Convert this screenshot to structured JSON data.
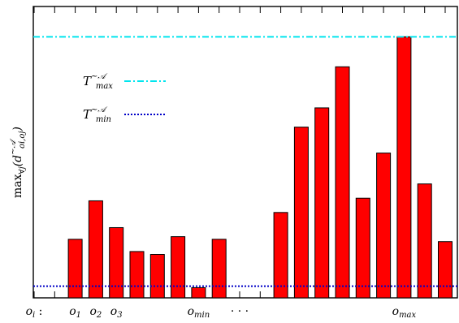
{
  "chart_data": {
    "type": "bar",
    "ylabel_main": "max",
    "ylabel_sub": "∀j",
    "ylabel_arg_base": "(d",
    "ylabel_arg_sup": "~𝒜",
    "ylabel_arg_sub": "oi,oj",
    "ylabel_arg_close": ")",
    "ylim": [
      0,
      100
    ],
    "num_slots": 21,
    "bars": [
      {
        "slot": 2,
        "value": 20.1
      },
      {
        "slot": 3,
        "value": 33.3
      },
      {
        "slot": 4,
        "value": 24.1
      },
      {
        "slot": 5,
        "value": 15.9
      },
      {
        "slot": 6,
        "value": 14.9
      },
      {
        "slot": 7,
        "value": 21.0
      },
      {
        "slot": 8,
        "value": 3.5
      },
      {
        "slot": 9,
        "value": 20.1
      },
      {
        "slot": 12,
        "value": 29.3
      },
      {
        "slot": 13,
        "value": 58.6
      },
      {
        "slot": 14,
        "value": 65.2
      },
      {
        "slot": 15,
        "value": 79.3
      },
      {
        "slot": 16,
        "value": 34.2
      },
      {
        "slot": 17,
        "value": 49.7
      },
      {
        "slot": 18,
        "value": 89.6
      },
      {
        "slot": 19,
        "value": 39.1
      },
      {
        "slot": 20,
        "value": 19.3
      }
    ],
    "bar_color": "#ff0000",
    "threshold_max": {
      "value": 89.6,
      "color": "#00e5ee"
    },
    "threshold_min": {
      "value": 4.0,
      "color": "#0000c8"
    },
    "legend": [
      {
        "base": "T",
        "sup": "~𝒜",
        "sub": "max",
        "style": "dash-dot",
        "color": "#00e5ee"
      },
      {
        "base": "T",
        "sup": "~𝒜",
        "sub": "min",
        "style": "dotted",
        "color": "#0000c8"
      }
    ],
    "xlabels": [
      {
        "slot": 0,
        "base": "o",
        "sub": "i",
        "suffix": " :"
      },
      {
        "slot": 2,
        "base": "o",
        "sub": "1"
      },
      {
        "slot": 3,
        "base": "o",
        "sub": "2"
      },
      {
        "slot": 4,
        "base": "o",
        "sub": "3"
      },
      {
        "slot": 8,
        "base": "o",
        "sub": "min"
      },
      {
        "slot": 10,
        "base": "· · ·",
        "sub": ""
      },
      {
        "slot": 18,
        "base": "o",
        "sub": "max"
      }
    ]
  }
}
